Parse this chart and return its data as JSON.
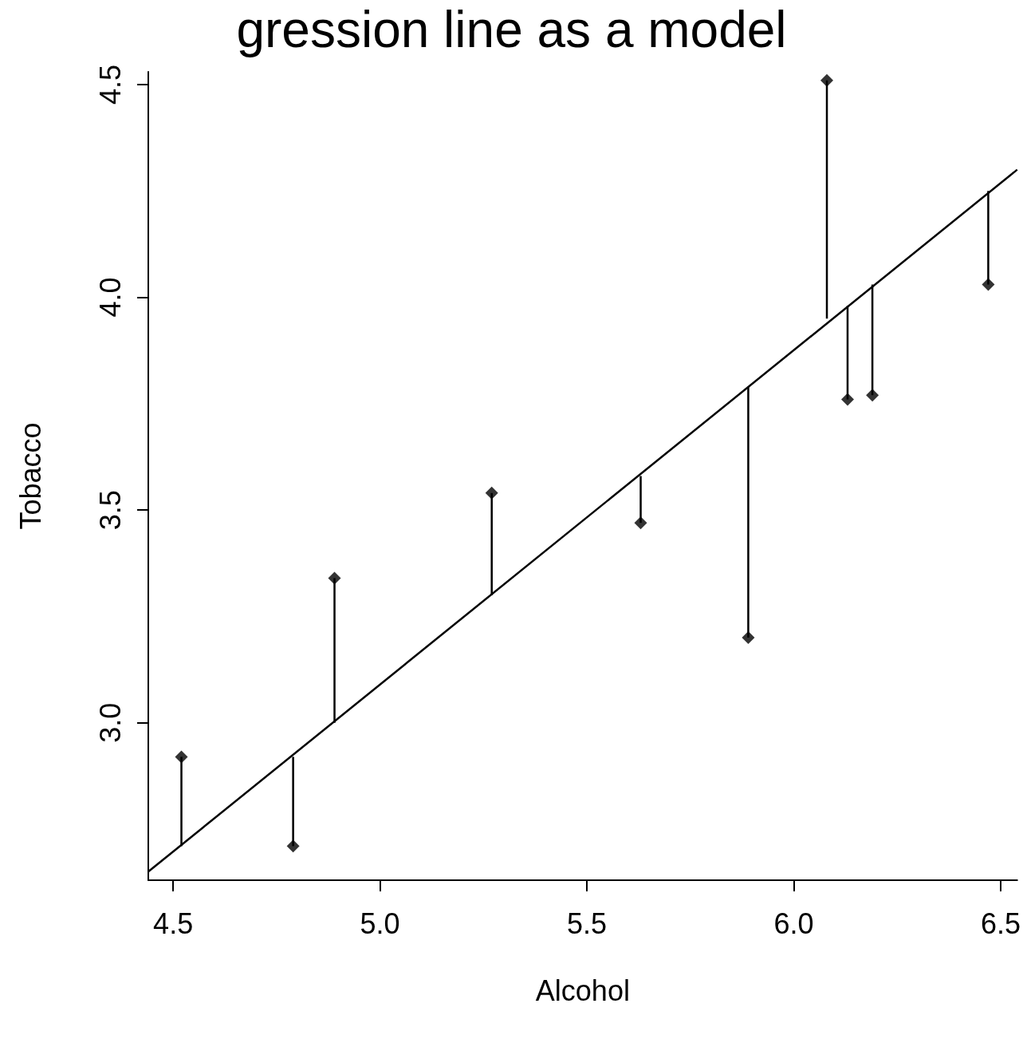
{
  "chart_data": {
    "type": "scatter",
    "title": "gression line as a model",
    "xlabel": "Alcohol",
    "ylabel": "Tobacco",
    "x": [
      4.52,
      4.79,
      4.89,
      5.27,
      5.63,
      5.89,
      6.08,
      6.13,
      6.19,
      6.47
    ],
    "series": [
      {
        "color": "#000000",
        "marker": "diamond",
        "values": [
          2.92,
          2.71,
          3.34,
          3.54,
          3.47,
          3.2,
          4.51,
          3.76,
          3.77,
          4.03
        ],
        "errors": [
          [
            2.71,
            2.92
          ],
          [
            2.71,
            2.92
          ],
          [
            3.0,
            3.34
          ],
          [
            3.3,
            3.54
          ],
          [
            3.47,
            3.58
          ],
          [
            3.2,
            3.79
          ],
          [
            3.95,
            4.51
          ],
          [
            3.76,
            3.98
          ],
          [
            3.77,
            4.03
          ],
          [
            4.03,
            4.25
          ]
        ]
      },
      {
        "type": "line",
        "color": "#000000",
        "marker": "none",
        "line_style": "solid",
        "x": [
          4.44,
          6.54
        ],
        "values": [
          2.65,
          4.3
        ]
      }
    ],
    "xlim": [
      4.44,
      6.54
    ],
    "ylim": [
      2.63,
      4.53
    ],
    "xticks": [
      4.5,
      {
        "value": 5,
        "label": "5.0"
      },
      5.5,
      {
        "value": 6,
        "label": "6.0"
      },
      6.5
    ],
    "yticks": [
      {
        "value": 3,
        "label": "3.0"
      },
      3.5,
      {
        "value": 4,
        "label": "4.0"
      },
      4.5
    ],
    "grid": false
  }
}
